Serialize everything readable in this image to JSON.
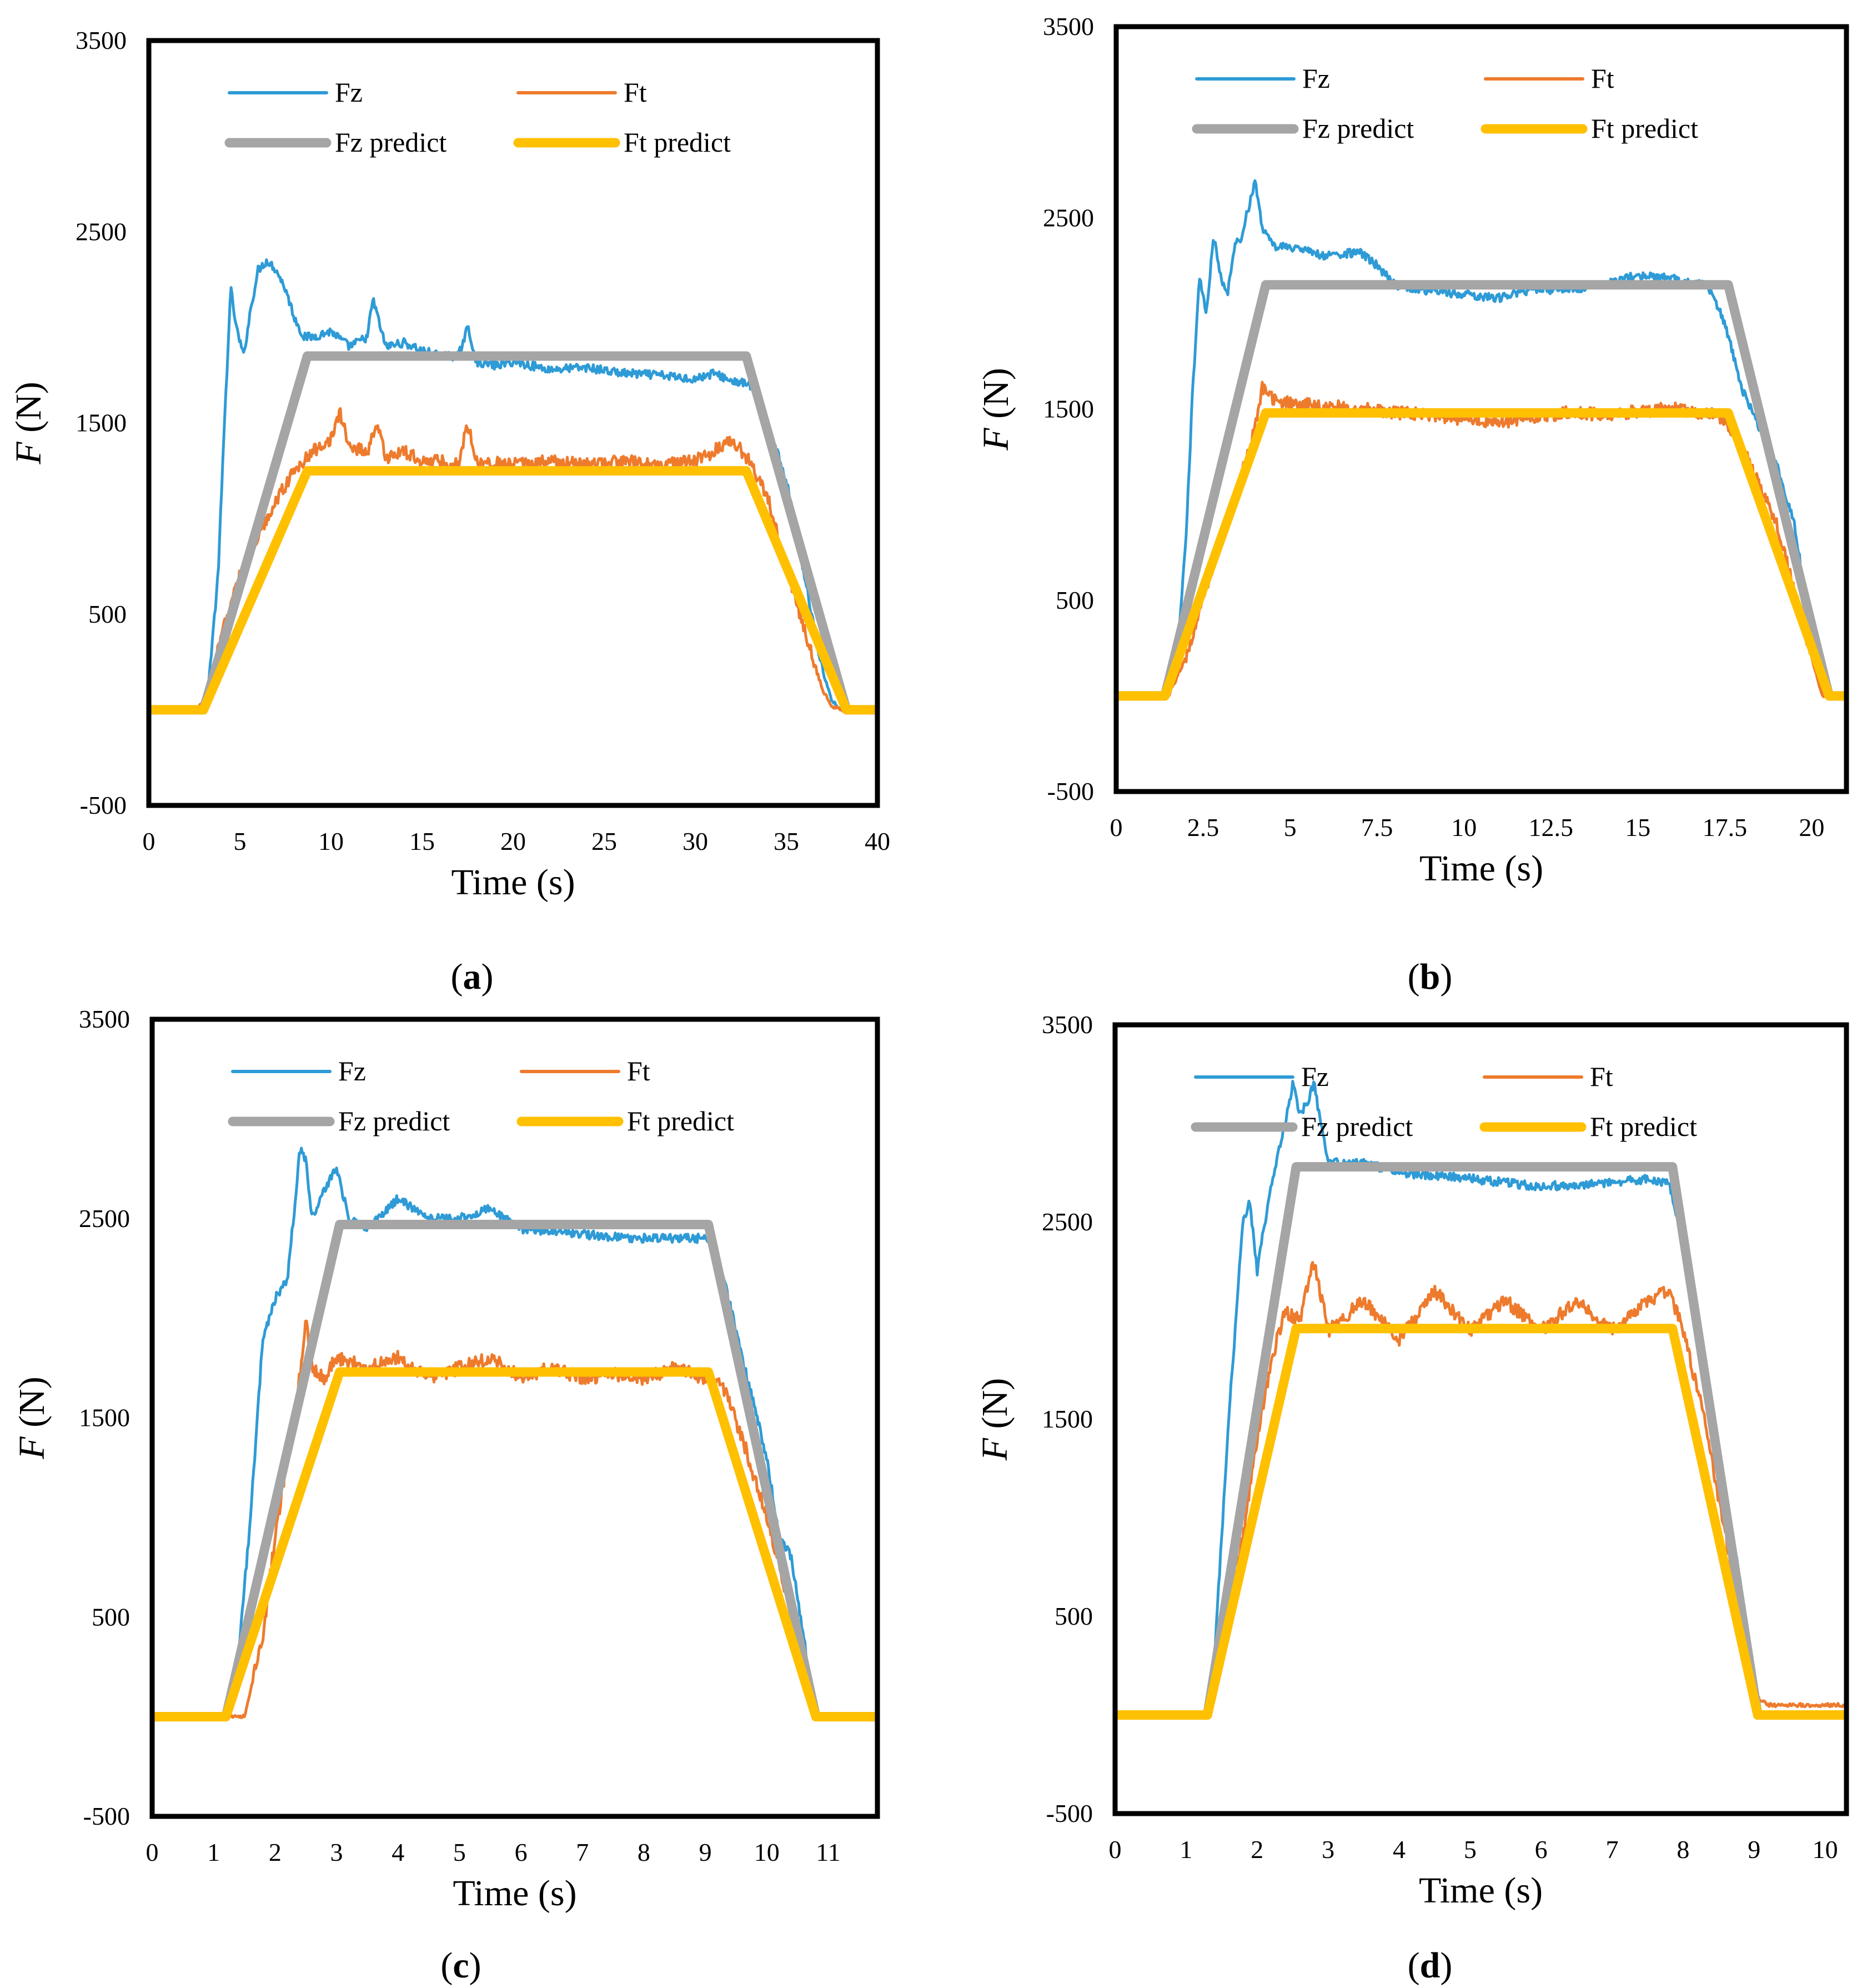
{
  "figure": {
    "panels_order": [
      "a",
      "b",
      "c",
      "d"
    ]
  },
  "chart_data": [
    {
      "id": "a",
      "caption": "(a)",
      "caption_letter": "a",
      "type": "line",
      "xlabel": "Time (s)",
      "ylabel_var": "F",
      "ylabel_unit": " (N)",
      "xlim": [
        0,
        40
      ],
      "ylim": [
        -500,
        3500
      ],
      "xticks": [
        0,
        5,
        10,
        15,
        20,
        25,
        30,
        35,
        40
      ],
      "yticks": [
        -500,
        500,
        1500,
        2500,
        3500
      ],
      "legend": [
        "Fz",
        "Ft",
        "Fz predict",
        "Ft predict"
      ],
      "series": [
        {
          "name": "Fz",
          "color": "#2e9bd6",
          "kind": "measured",
          "x": [
            0,
            2.5,
            3.2,
            3.8,
            4.2,
            4.5,
            4.8,
            5.2,
            5.6,
            6.0,
            6.5,
            7.0,
            7.5,
            8.0,
            8.5,
            9.0,
            10,
            11,
            12,
            12.3,
            13,
            14,
            15,
            16,
            17,
            17.5,
            18,
            19,
            20,
            22,
            24,
            26,
            28,
            30,
            31,
            32,
            33,
            34,
            35,
            36,
            37,
            37.5,
            38,
            39,
            40
          ],
          "y": [
            0,
            0,
            50,
            700,
            1600,
            2200,
            2000,
            1850,
            2100,
            2300,
            2350,
            2300,
            2200,
            2050,
            1950,
            1950,
            1980,
            1900,
            1950,
            2150,
            1900,
            1920,
            1880,
            1850,
            1850,
            2000,
            1820,
            1800,
            1820,
            1780,
            1790,
            1760,
            1750,
            1730,
            1760,
            1720,
            1700,
            1500,
            1200,
            700,
            200,
            50,
            0,
            0,
            0
          ]
        },
        {
          "name": "Ft",
          "color": "#ee7b2d",
          "kind": "measured",
          "x": [
            0,
            2.5,
            3.2,
            4.0,
            5.0,
            6.0,
            7.0,
            8.0,
            9.0,
            10.0,
            10.5,
            11.0,
            12.0,
            12.5,
            13.0,
            14,
            15,
            16,
            17,
            17.5,
            18,
            20,
            22,
            24,
            26,
            28,
            30,
            31,
            32,
            33,
            34,
            35,
            36,
            37,
            37.5,
            38,
            39,
            40
          ],
          "y": [
            0,
            0,
            50,
            400,
            700,
            900,
            1100,
            1250,
            1350,
            1420,
            1550,
            1380,
            1350,
            1500,
            1320,
            1350,
            1300,
            1300,
            1280,
            1500,
            1300,
            1280,
            1300,
            1280,
            1300,
            1280,
            1300,
            1350,
            1420,
            1300,
            1100,
            750,
            420,
            100,
            20,
            0,
            0,
            0
          ]
        },
        {
          "name": "Fz predict",
          "color": "#a5a5a5",
          "kind": "predict",
          "x": [
            0,
            3,
            8.7,
            32.8,
            38.3,
            40
          ],
          "y": [
            0,
            0,
            1850,
            1850,
            0,
            0
          ]
        },
        {
          "name": "Ft predict",
          "color": "#ffc000",
          "kind": "predict",
          "x": [
            0,
            3,
            8.7,
            32.8,
            38.3,
            40
          ],
          "y": [
            0,
            0,
            1250,
            1250,
            0,
            0
          ]
        }
      ]
    },
    {
      "id": "b",
      "caption": "(b)",
      "caption_letter": "b",
      "type": "line",
      "xlabel": "Time (s)",
      "ylabel_var": "F",
      "ylabel_unit": " (N)",
      "xlim": [
        0,
        21
      ],
      "ylim": [
        -500,
        3500
      ],
      "xticks": [
        0,
        2.5,
        5,
        7.5,
        10,
        12.5,
        15,
        17.5,
        20
      ],
      "yticks": [
        -500,
        500,
        1500,
        2500,
        3500
      ],
      "legend": [
        "Fz",
        "Ft",
        "Fz predict",
        "Ft predict"
      ],
      "series": [
        {
          "name": "Fz",
          "color": "#2e9bd6",
          "kind": "measured",
          "x": [
            0,
            1.3,
            1.7,
            2.0,
            2.2,
            2.4,
            2.6,
            2.8,
            3.0,
            3.2,
            3.4,
            3.6,
            3.8,
            4.0,
            4.2,
            4.5,
            5,
            6,
            7,
            7.5,
            8,
            9,
            10,
            11,
            12,
            13,
            14,
            15,
            16,
            17,
            17.5,
            18,
            18.5,
            19,
            19.5,
            20,
            20.3,
            21
          ],
          "y": [
            0,
            0,
            100,
            800,
            1600,
            2200,
            2000,
            2400,
            2200,
            2100,
            2350,
            2400,
            2550,
            2700,
            2450,
            2350,
            2350,
            2300,
            2320,
            2250,
            2150,
            2120,
            2100,
            2080,
            2130,
            2120,
            2150,
            2200,
            2180,
            2150,
            1950,
            1600,
            1400,
            1200,
            900,
            300,
            0,
            0
          ]
        },
        {
          "name": "Ft",
          "color": "#ee7b2d",
          "kind": "measured",
          "x": [
            0,
            1.5,
            2.0,
            2.5,
            3.0,
            3.5,
            4.0,
            4.2,
            4.5,
            5,
            6,
            7,
            8,
            9,
            10,
            11,
            12,
            13,
            14,
            15,
            16,
            17,
            17.5,
            18,
            19,
            19.5,
            20,
            20.3,
            21
          ],
          "y": [
            0,
            0,
            200,
            500,
            800,
            1100,
            1400,
            1620,
            1550,
            1530,
            1520,
            1500,
            1480,
            1470,
            1450,
            1430,
            1460,
            1480,
            1470,
            1490,
            1500,
            1480,
            1450,
            1300,
            900,
            550,
            200,
            0,
            0
          ]
        },
        {
          "name": "Fz predict",
          "color": "#a5a5a5",
          "kind": "predict",
          "x": [
            0,
            1.4,
            4.3,
            17.6,
            20.5,
            21
          ],
          "y": [
            0,
            0,
            2150,
            2150,
            0,
            0
          ]
        },
        {
          "name": "Ft predict",
          "color": "#ffc000",
          "kind": "predict",
          "x": [
            0,
            1.4,
            4.3,
            17.6,
            20.5,
            21
          ],
          "y": [
            0,
            0,
            1480,
            1480,
            0,
            0
          ]
        }
      ]
    },
    {
      "id": "c",
      "caption": "(c)",
      "caption_letter": "c",
      "type": "line",
      "xlabel": "Time (s)",
      "ylabel_var": "F",
      "ylabel_unit": " (N)",
      "xlim": [
        0,
        11.8
      ],
      "ylim": [
        -500,
        3500
      ],
      "xticks": [
        0,
        1,
        2,
        3,
        4,
        5,
        6,
        7,
        8,
        9,
        10,
        11
      ],
      "yticks": [
        -500,
        500,
        1500,
        2500,
        3500
      ],
      "legend": [
        "Fz",
        "Ft",
        "Fz predict",
        "Ft predict"
      ],
      "series": [
        {
          "name": "Fz",
          "color": "#2e9bd6",
          "kind": "measured",
          "x": [
            0,
            1.2,
            1.4,
            1.6,
            1.8,
            2.0,
            2.2,
            2.3,
            2.4,
            2.5,
            2.6,
            2.8,
            3.0,
            3.2,
            3.5,
            4.0,
            4.5,
            5,
            5.5,
            6,
            7,
            8,
            9,
            9.3,
            9.6,
            10,
            10.2,
            10.4,
            10.6,
            10.8,
            11.8
          ],
          "y": [
            0,
            0,
            300,
            1000,
            1900,
            2100,
            2200,
            2500,
            2850,
            2800,
            2500,
            2650,
            2750,
            2500,
            2450,
            2600,
            2500,
            2500,
            2550,
            2450,
            2420,
            2400,
            2400,
            2200,
            1800,
            1300,
            900,
            800,
            400,
            0,
            0
          ]
        },
        {
          "name": "Ft",
          "color": "#ee7b2d",
          "kind": "measured",
          "x": [
            0,
            1.5,
            1.8,
            2.0,
            2.2,
            2.4,
            2.5,
            2.6,
            2.8,
            3.0,
            3.5,
            4.0,
            4.5,
            5,
            5.5,
            6,
            6.5,
            7,
            7.5,
            8,
            8.5,
            9,
            9.3,
            9.6,
            10,
            10.4,
            10.8,
            11.8
          ],
          "y": [
            0,
            0,
            400,
            900,
            1300,
            1700,
            2000,
            1750,
            1700,
            1800,
            1750,
            1800,
            1700,
            1750,
            1800,
            1700,
            1750,
            1700,
            1720,
            1700,
            1750,
            1700,
            1650,
            1400,
            1000,
            500,
            0,
            0
          ]
        },
        {
          "name": "Fz predict",
          "color": "#a5a5a5",
          "kind": "predict",
          "x": [
            0,
            1.2,
            3.05,
            9.05,
            10.8,
            11.8
          ],
          "y": [
            0,
            0,
            2470,
            2470,
            0,
            0
          ]
        },
        {
          "name": "Ft predict",
          "color": "#ffc000",
          "kind": "predict",
          "x": [
            0,
            1.2,
            3.05,
            9.05,
            10.8,
            11.8
          ],
          "y": [
            0,
            0,
            1730,
            1730,
            0,
            0
          ]
        }
      ]
    },
    {
      "id": "d",
      "caption": "(d)",
      "caption_letter": "d",
      "type": "line",
      "xlabel": "Time (s)",
      "ylabel_var": "F",
      "ylabel_unit": " (N)",
      "xlim": [
        0,
        10.3
      ],
      "ylim": [
        -500,
        3500
      ],
      "xticks": [
        0,
        1,
        2,
        3,
        4,
        5,
        6,
        7,
        8,
        9,
        10
      ],
      "yticks": [
        -500,
        500,
        1500,
        2500,
        3500
      ],
      "legend": [
        "Fz",
        "Ft",
        "Fz predict",
        "Ft predict"
      ],
      "series": [
        {
          "name": "Fz",
          "color": "#2e9bd6",
          "kind": "measured",
          "x": [
            0,
            1.3,
            1.4,
            1.6,
            1.8,
            1.9,
            2.0,
            2.2,
            2.4,
            2.5,
            2.6,
            2.7,
            2.8,
            3.0,
            3.5,
            4,
            5,
            6,
            7,
            7.5,
            7.8,
            8.0,
            8.3,
            8.6,
            8.8,
            9.0,
            10.3
          ],
          "y": [
            0,
            0,
            300,
            1500,
            2500,
            2600,
            2250,
            2700,
            3000,
            3200,
            3050,
            3100,
            3200,
            2800,
            2800,
            2750,
            2720,
            2680,
            2700,
            2720,
            2700,
            2400,
            1700,
            1100,
            700,
            0,
            0
          ]
        },
        {
          "name": "Ft",
          "color": "#ee7b2d",
          "kind": "measured",
          "x": [
            0,
            1.3,
            1.5,
            1.8,
            2.0,
            2.2,
            2.4,
            2.6,
            2.8,
            3.0,
            3.5,
            4,
            4.5,
            5,
            5.5,
            6,
            6.5,
            7,
            7.5,
            7.8,
            8.0,
            8.3,
            8.6,
            9.0,
            9.2,
            10.3
          ],
          "y": [
            0,
            0,
            300,
            900,
            1400,
            1800,
            2050,
            2000,
            2300,
            1950,
            2100,
            1900,
            2150,
            1950,
            2100,
            1950,
            2100,
            1950,
            2100,
            2150,
            1950,
            1500,
            900,
            100,
            50,
            50
          ]
        },
        {
          "name": "Fz predict",
          "color": "#a5a5a5",
          "kind": "predict",
          "x": [
            0,
            1.3,
            2.55,
            7.85,
            9.05,
            10.3
          ],
          "y": [
            0,
            0,
            2780,
            2780,
            0,
            0
          ]
        },
        {
          "name": "Ft predict",
          "color": "#ffc000",
          "kind": "predict",
          "x": [
            0,
            1.3,
            2.55,
            7.85,
            9.05,
            10.3
          ],
          "y": [
            0,
            0,
            1960,
            1960,
            0,
            0
          ]
        }
      ]
    }
  ]
}
